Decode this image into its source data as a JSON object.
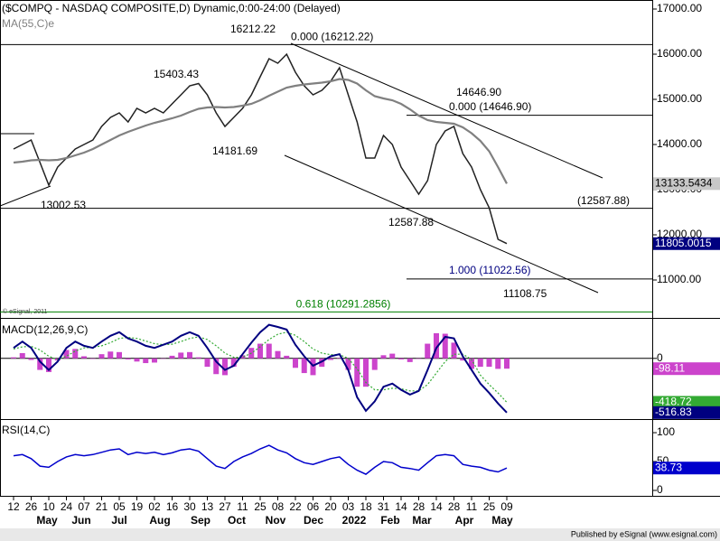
{
  "chart_data": [
    {
      "type": "line",
      "title": "($COMPQ - NASDAQ COMPOSITE,D) Dynamic,0:00-24:00 (Delayed)",
      "copyright": "© eSignal, 2011",
      "categories": [
        "12",
        null,
        "26",
        null,
        "10",
        null,
        "24",
        null,
        "07",
        null,
        "21",
        null,
        "05",
        null,
        "19",
        null,
        "02",
        null,
        "16",
        null,
        "30",
        null,
        "13",
        null,
        "27",
        null,
        "11",
        null,
        "25",
        null,
        "08",
        null,
        "22",
        null,
        "06",
        null,
        "20",
        null,
        "03",
        null,
        "18",
        null,
        "31",
        null,
        "14",
        null,
        "28",
        null,
        "14",
        null,
        "28",
        null,
        "11",
        null,
        "25",
        null,
        "09"
      ],
      "months": [
        "May",
        "Jun",
        "Jul",
        "Aug",
        "Sep",
        "Oct",
        "Nov",
        "Dec",
        "2022",
        "Feb",
        "Mar",
        "Apr",
        "May"
      ],
      "ylim": [
        10200,
        17160
      ],
      "yticks": [
        {
          "value": 17000,
          "label": "17000.00"
        },
        {
          "value": 16000,
          "label": "16000.00"
        },
        {
          "value": 15000,
          "label": "15000.00"
        },
        {
          "value": 14000,
          "label": "14000.00"
        },
        {
          "value": 13000,
          "label": "13000.00"
        },
        {
          "value": 12000,
          "label": "12000.00"
        },
        {
          "value": 11000,
          "label": "11000.00"
        }
      ],
      "series": [
        {
          "name": "$COMPQ",
          "color": "#222222",
          "values": [
            13900,
            14000,
            14100,
            13600,
            13100,
            13500,
            13700,
            13900,
            14000,
            14100,
            14400,
            14600,
            14700,
            14500,
            14800,
            14700,
            14800,
            14700,
            14900,
            15100,
            15300,
            15350,
            15100,
            14700,
            14400,
            14600,
            14800,
            15100,
            15500,
            15900,
            15800,
            16000,
            15600,
            15300,
            15100,
            15200,
            15400,
            15700,
            15100,
            14500,
            13700,
            13700,
            14200,
            14000,
            13500,
            13200,
            12900,
            13200,
            14000,
            14300,
            14400,
            13800,
            13500,
            13000,
            12600,
            11900,
            11805.0015
          ]
        },
        {
          "name": "MA(55,C)e",
          "color": "#808080",
          "values": [
            13600,
            13620,
            13650,
            13660,
            13650,
            13660,
            13700,
            13760,
            13820,
            13900,
            14000,
            14100,
            14200,
            14280,
            14350,
            14420,
            14480,
            14530,
            14580,
            14640,
            14720,
            14790,
            14820,
            14830,
            14820,
            14830,
            14860,
            14900,
            14980,
            15080,
            15170,
            15260,
            15300,
            15330,
            15350,
            15370,
            15400,
            15450,
            15430,
            15350,
            15200,
            15070,
            15020,
            14980,
            14900,
            14780,
            14640,
            14540,
            14500,
            14480,
            14460,
            14380,
            14250,
            14080,
            13850,
            13500,
            13133.5434
          ]
        }
      ],
      "levels": [
        {
          "value": 16212.22,
          "label": "0.000 (16212.22)",
          "color": "#000000"
        },
        {
          "value": 14646.9,
          "label": "0.000 (14646.90)",
          "color": "#000000"
        },
        {
          "value": 12587.88,
          "label": "(12587.88)",
          "color": "#000000"
        },
        {
          "value": 11022.56,
          "label": "1.000 (11022.56)",
          "color": "#000000"
        },
        {
          "value": 10291.2856,
          "label": "0.618 (10291.2856)",
          "color": "#008000"
        }
      ],
      "swing_points": [
        {
          "value": 16212.22,
          "label": "16212.22"
        },
        {
          "value": 15403.43,
          "label": "15403.43"
        },
        {
          "value": 14181.69,
          "label": "14181.69"
        },
        {
          "value": 13002.53,
          "label": "13002.53"
        },
        {
          "value": 12587.88,
          "label": "12587.88"
        },
        {
          "value": 14646.9,
          "label": "14646.90"
        },
        {
          "value": 11108.75,
          "label": "11108.75"
        }
      ]
    },
    {
      "type": "macd",
      "title": "MACD(12,26,9,C)",
      "ylim": [
        -570,
        360
      ],
      "yticks": [
        0
      ],
      "series": [
        {
          "name": "MACD",
          "color": "#000080",
          "values": [
            100,
            160,
            100,
            -30,
            -110,
            -30,
            100,
            160,
            120,
            100,
            160,
            215,
            250,
            190,
            160,
            120,
            100,
            130,
            160,
            215,
            250,
            215,
            100,
            -30,
            -110,
            -70,
            40,
            150,
            250,
            320,
            300,
            275,
            130,
            20,
            -70,
            -30,
            20,
            40,
            -110,
            -370,
            -500,
            -410,
            -270,
            -240,
            -300,
            -345,
            -310,
            -110,
            100,
            205,
            190,
            20,
            -110,
            -240,
            -330,
            -430,
            -516.83
          ]
        },
        {
          "name": "Signal",
          "color": "#33aa33",
          "values": [
            90,
            110,
            115,
            80,
            20,
            -10,
            20,
            70,
            100,
            105,
            120,
            150,
            190,
            200,
            190,
            165,
            140,
            130,
            135,
            160,
            190,
            205,
            180,
            120,
            50,
            10,
            10,
            50,
            110,
            180,
            230,
            250,
            220,
            160,
            90,
            50,
            35,
            35,
            0,
            -100,
            -230,
            -300,
            -300,
            -285,
            -290,
            -310,
            -310,
            -250,
            -140,
            -30,
            40,
            40,
            -10,
            -160,
            -250,
            -330,
            -418.72
          ]
        },
        {
          "name": "Histogram",
          "color": "#cc44cc",
          "values": [
            10,
            50,
            -15,
            -110,
            -130,
            -20,
            80,
            90,
            20,
            -5,
            40,
            65,
            60,
            -10,
            -30,
            -45,
            -40,
            0,
            25,
            55,
            60,
            10,
            -80,
            -150,
            -160,
            -80,
            30,
            100,
            140,
            140,
            70,
            25,
            -90,
            -140,
            -160,
            -80,
            -15,
            5,
            -110,
            -270,
            -270,
            -110,
            30,
            45,
            -10,
            -35,
            0,
            140,
            240,
            235,
            150,
            -20,
            -100,
            -80,
            -80,
            -100,
            -98.11
          ]
        }
      ]
    },
    {
      "type": "line",
      "title": "RSI(14,C)",
      "ylim": [
        -11,
        122
      ],
      "yticks": [
        100,
        50,
        0
      ],
      "series": [
        {
          "name": "RSI",
          "color": "#0000cc",
          "values": [
            60,
            62,
            55,
            42,
            40,
            50,
            58,
            62,
            60,
            62,
            66,
            70,
            72,
            62,
            66,
            64,
            66,
            62,
            65,
            70,
            72,
            68,
            55,
            42,
            38,
            50,
            58,
            64,
            72,
            78,
            70,
            65,
            55,
            48,
            45,
            50,
            55,
            58,
            45,
            35,
            28,
            40,
            50,
            48,
            40,
            38,
            35,
            48,
            60,
            62,
            60,
            45,
            42,
            40,
            35,
            32,
            38.73
          ]
        }
      ]
    },
    {
      "type": "footer",
      "title": "Published by eSignal (www.esignal.com)"
    }
  ]
}
